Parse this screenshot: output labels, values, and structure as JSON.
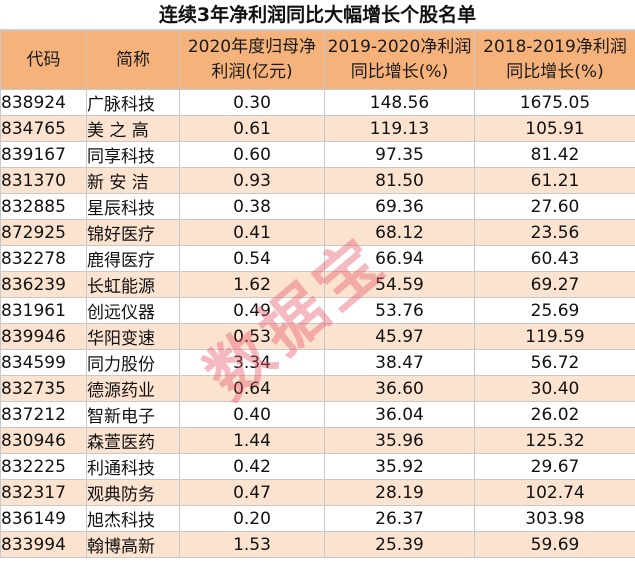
{
  "title": "连续3年净利润同比大幅增长个股名单",
  "headers": [
    "代码",
    "简称",
    "2020年度归母净利润(亿元)",
    "2019-2020净利润同比增长(%)",
    "2018-2019净利润同比增长(%)"
  ],
  "rows": [
    {
      "code": "838924",
      "name": "广脉科技",
      "profit": "0.30",
      "g2020": "148.56",
      "g2019": "1675.05"
    },
    {
      "code": "834765",
      "name": "美 之 高",
      "profit": "0.61",
      "g2020": "119.13",
      "g2019": "105.91"
    },
    {
      "code": "839167",
      "name": "同享科技",
      "profit": "0.60",
      "g2020": "97.35",
      "g2019": "81.42"
    },
    {
      "code": "831370",
      "name": "新 安 洁",
      "profit": "0.93",
      "g2020": "81.50",
      "g2019": "61.21"
    },
    {
      "code": "832885",
      "name": "星辰科技",
      "profit": "0.38",
      "g2020": "69.36",
      "g2019": "27.60"
    },
    {
      "code": "872925",
      "name": "锦好医疗",
      "profit": "0.41",
      "g2020": "68.12",
      "g2019": "23.56"
    },
    {
      "code": "832278",
      "name": "鹿得医疗",
      "profit": "0.54",
      "g2020": "66.94",
      "g2019": "60.43"
    },
    {
      "code": "836239",
      "name": "长虹能源",
      "profit": "1.62",
      "g2020": "54.59",
      "g2019": "69.27"
    },
    {
      "code": "831961",
      "name": "创远仪器",
      "profit": "0.49",
      "g2020": "53.76",
      "g2019": "25.69"
    },
    {
      "code": "839946",
      "name": "华阳变速",
      "profit": "0.53",
      "g2020": "45.97",
      "g2019": "119.59"
    },
    {
      "code": "834599",
      "name": "同力股份",
      "profit": "3.34",
      "g2020": "38.47",
      "g2019": "56.72"
    },
    {
      "code": "832735",
      "name": "德源药业",
      "profit": "0.64",
      "g2020": "36.60",
      "g2019": "30.40"
    },
    {
      "code": "837212",
      "name": "智新电子",
      "profit": "0.40",
      "g2020": "36.04",
      "g2019": "26.02"
    },
    {
      "code": "830946",
      "name": "森萱医药",
      "profit": "1.44",
      "g2020": "35.96",
      "g2019": "125.32"
    },
    {
      "code": "832225",
      "name": "利通科技",
      "profit": "0.42",
      "g2020": "35.92",
      "g2019": "29.67"
    },
    {
      "code": "832317",
      "name": "观典防务",
      "profit": "0.47",
      "g2020": "28.19",
      "g2019": "102.74"
    },
    {
      "code": "836149",
      "name": "旭杰科技",
      "profit": "0.20",
      "g2020": "26.37",
      "g2019": "303.98"
    },
    {
      "code": "833994",
      "name": "翰博高新",
      "profit": "1.53",
      "g2020": "25.39",
      "g2019": "59.69"
    }
  ],
  "watermark": "数据宝",
  "colors": {
    "header_bg": "#f5b27a",
    "stripe_bg": "#fbe3cf",
    "border": "#c9c9c9",
    "watermark": "#e8586c"
  }
}
